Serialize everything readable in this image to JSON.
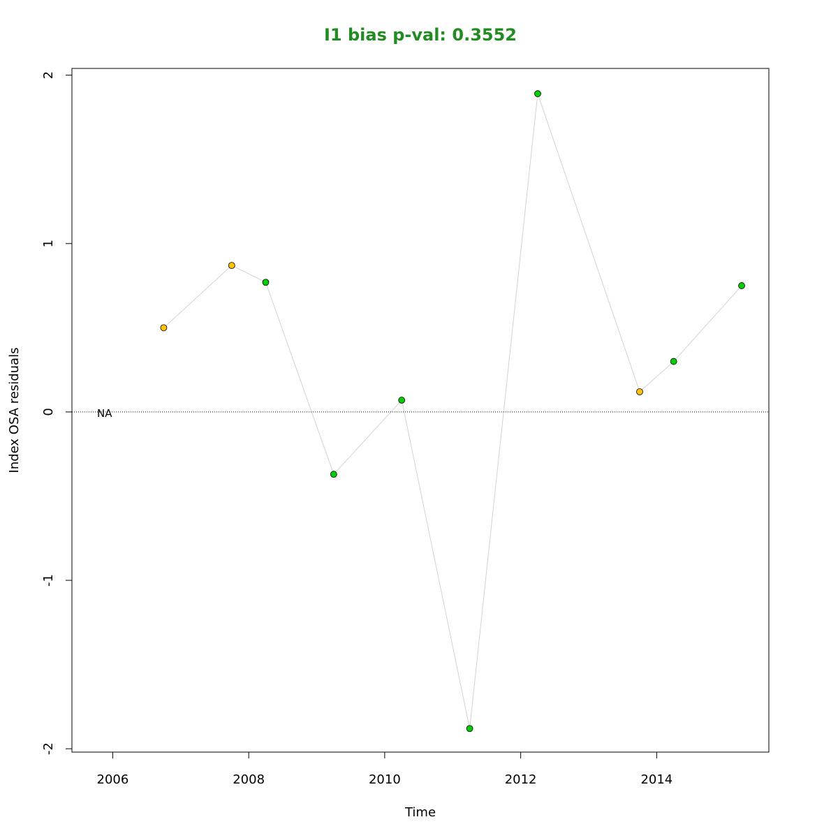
{
  "chart_data": {
    "type": "scatter",
    "title": "I1 bias p-val: 0.3552",
    "title_color": "#228B22",
    "xlabel": "Time",
    "ylabel": "Index OSA residuals",
    "xlim": [
      2005.4,
      2015.65
    ],
    "ylim": [
      -2.02,
      2.04
    ],
    "x_ticks": [
      2006,
      2008,
      2010,
      2012,
      2014
    ],
    "x_tick_labels": [
      "2006",
      "2008",
      "2010",
      "2012",
      "2014"
    ],
    "y_ticks": [
      -2,
      -1,
      0,
      1,
      2
    ],
    "y_tick_labels": [
      "-2",
      "-1",
      "0",
      "1",
      "2"
    ],
    "reference_line": 0,
    "annotation": "NA",
    "annotation_x": 2005.77,
    "annotation_y": 0,
    "line_color": "#d3d3d3",
    "grid": false,
    "points": [
      {
        "x": 2006.75,
        "y": 0.5,
        "color": "#FFC20A"
      },
      {
        "x": 2007.75,
        "y": 0.87,
        "color": "#FFC20A"
      },
      {
        "x": 2008.25,
        "y": 0.77,
        "color": "#00CD00"
      },
      {
        "x": 2009.25,
        "y": -0.37,
        "color": "#00CD00"
      },
      {
        "x": 2010.25,
        "y": 0.07,
        "color": "#00CD00"
      },
      {
        "x": 2011.25,
        "y": -1.88,
        "color": "#00CD00"
      },
      {
        "x": 2012.25,
        "y": 1.89,
        "color": "#00CD00"
      },
      {
        "x": 2013.75,
        "y": 0.12,
        "color": "#FFC20A"
      },
      {
        "x": 2014.25,
        "y": 0.3,
        "color": "#00CD00"
      },
      {
        "x": 2015.25,
        "y": 0.75,
        "color": "#00CD00"
      }
    ]
  }
}
